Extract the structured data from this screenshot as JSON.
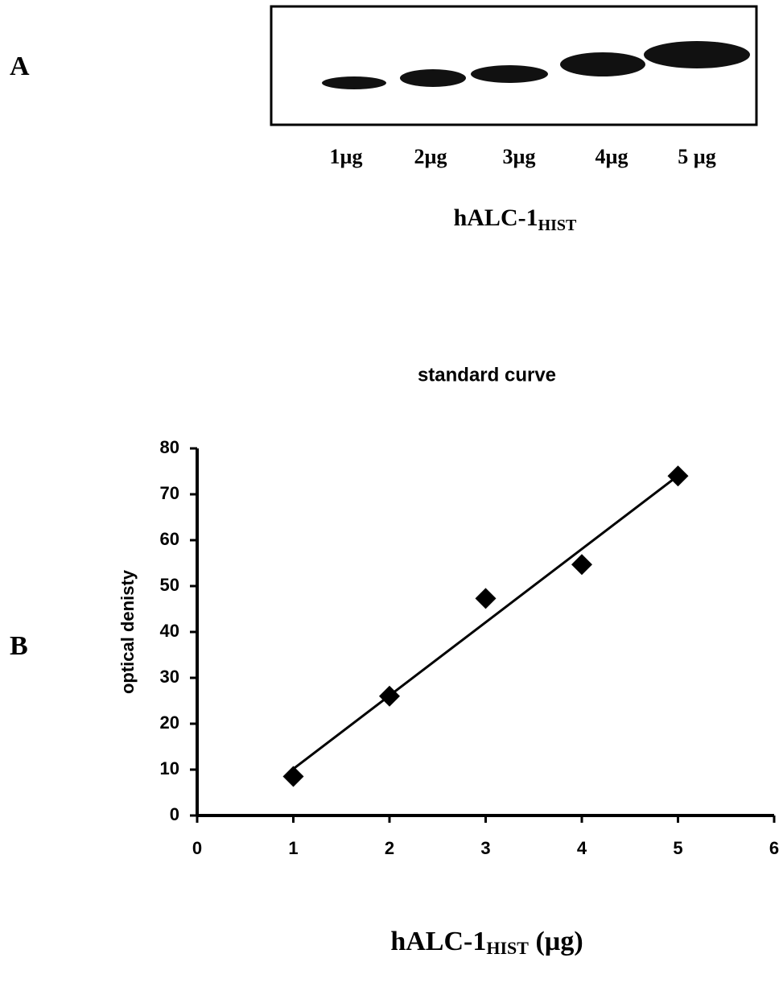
{
  "figure": {
    "panel_a": "A",
    "panel_b": "B",
    "lanes": [
      "1µg",
      "2µg",
      "3µg",
      "4µg",
      "5 µg"
    ],
    "blot_label": [
      "hALC-1",
      "HIST"
    ]
  },
  "chart_data": {
    "type": "scatter",
    "title": "standard curve",
    "xlabel": [
      "hALC-1",
      "HIST",
      " (µg)"
    ],
    "ylabel": "optical denisty",
    "x": [
      1,
      2,
      3,
      4,
      5
    ],
    "values": [
      8.5,
      26,
      47.3,
      54.7,
      74
    ],
    "color": "#000000",
    "trendline": "linear",
    "xlim": [
      0,
      6
    ],
    "ylim": [
      0,
      80
    ],
    "xticks": [
      0,
      1,
      2,
      3,
      4,
      5,
      6
    ],
    "yticks": [
      0,
      10,
      20,
      30,
      40,
      50,
      60,
      70,
      80
    ]
  }
}
